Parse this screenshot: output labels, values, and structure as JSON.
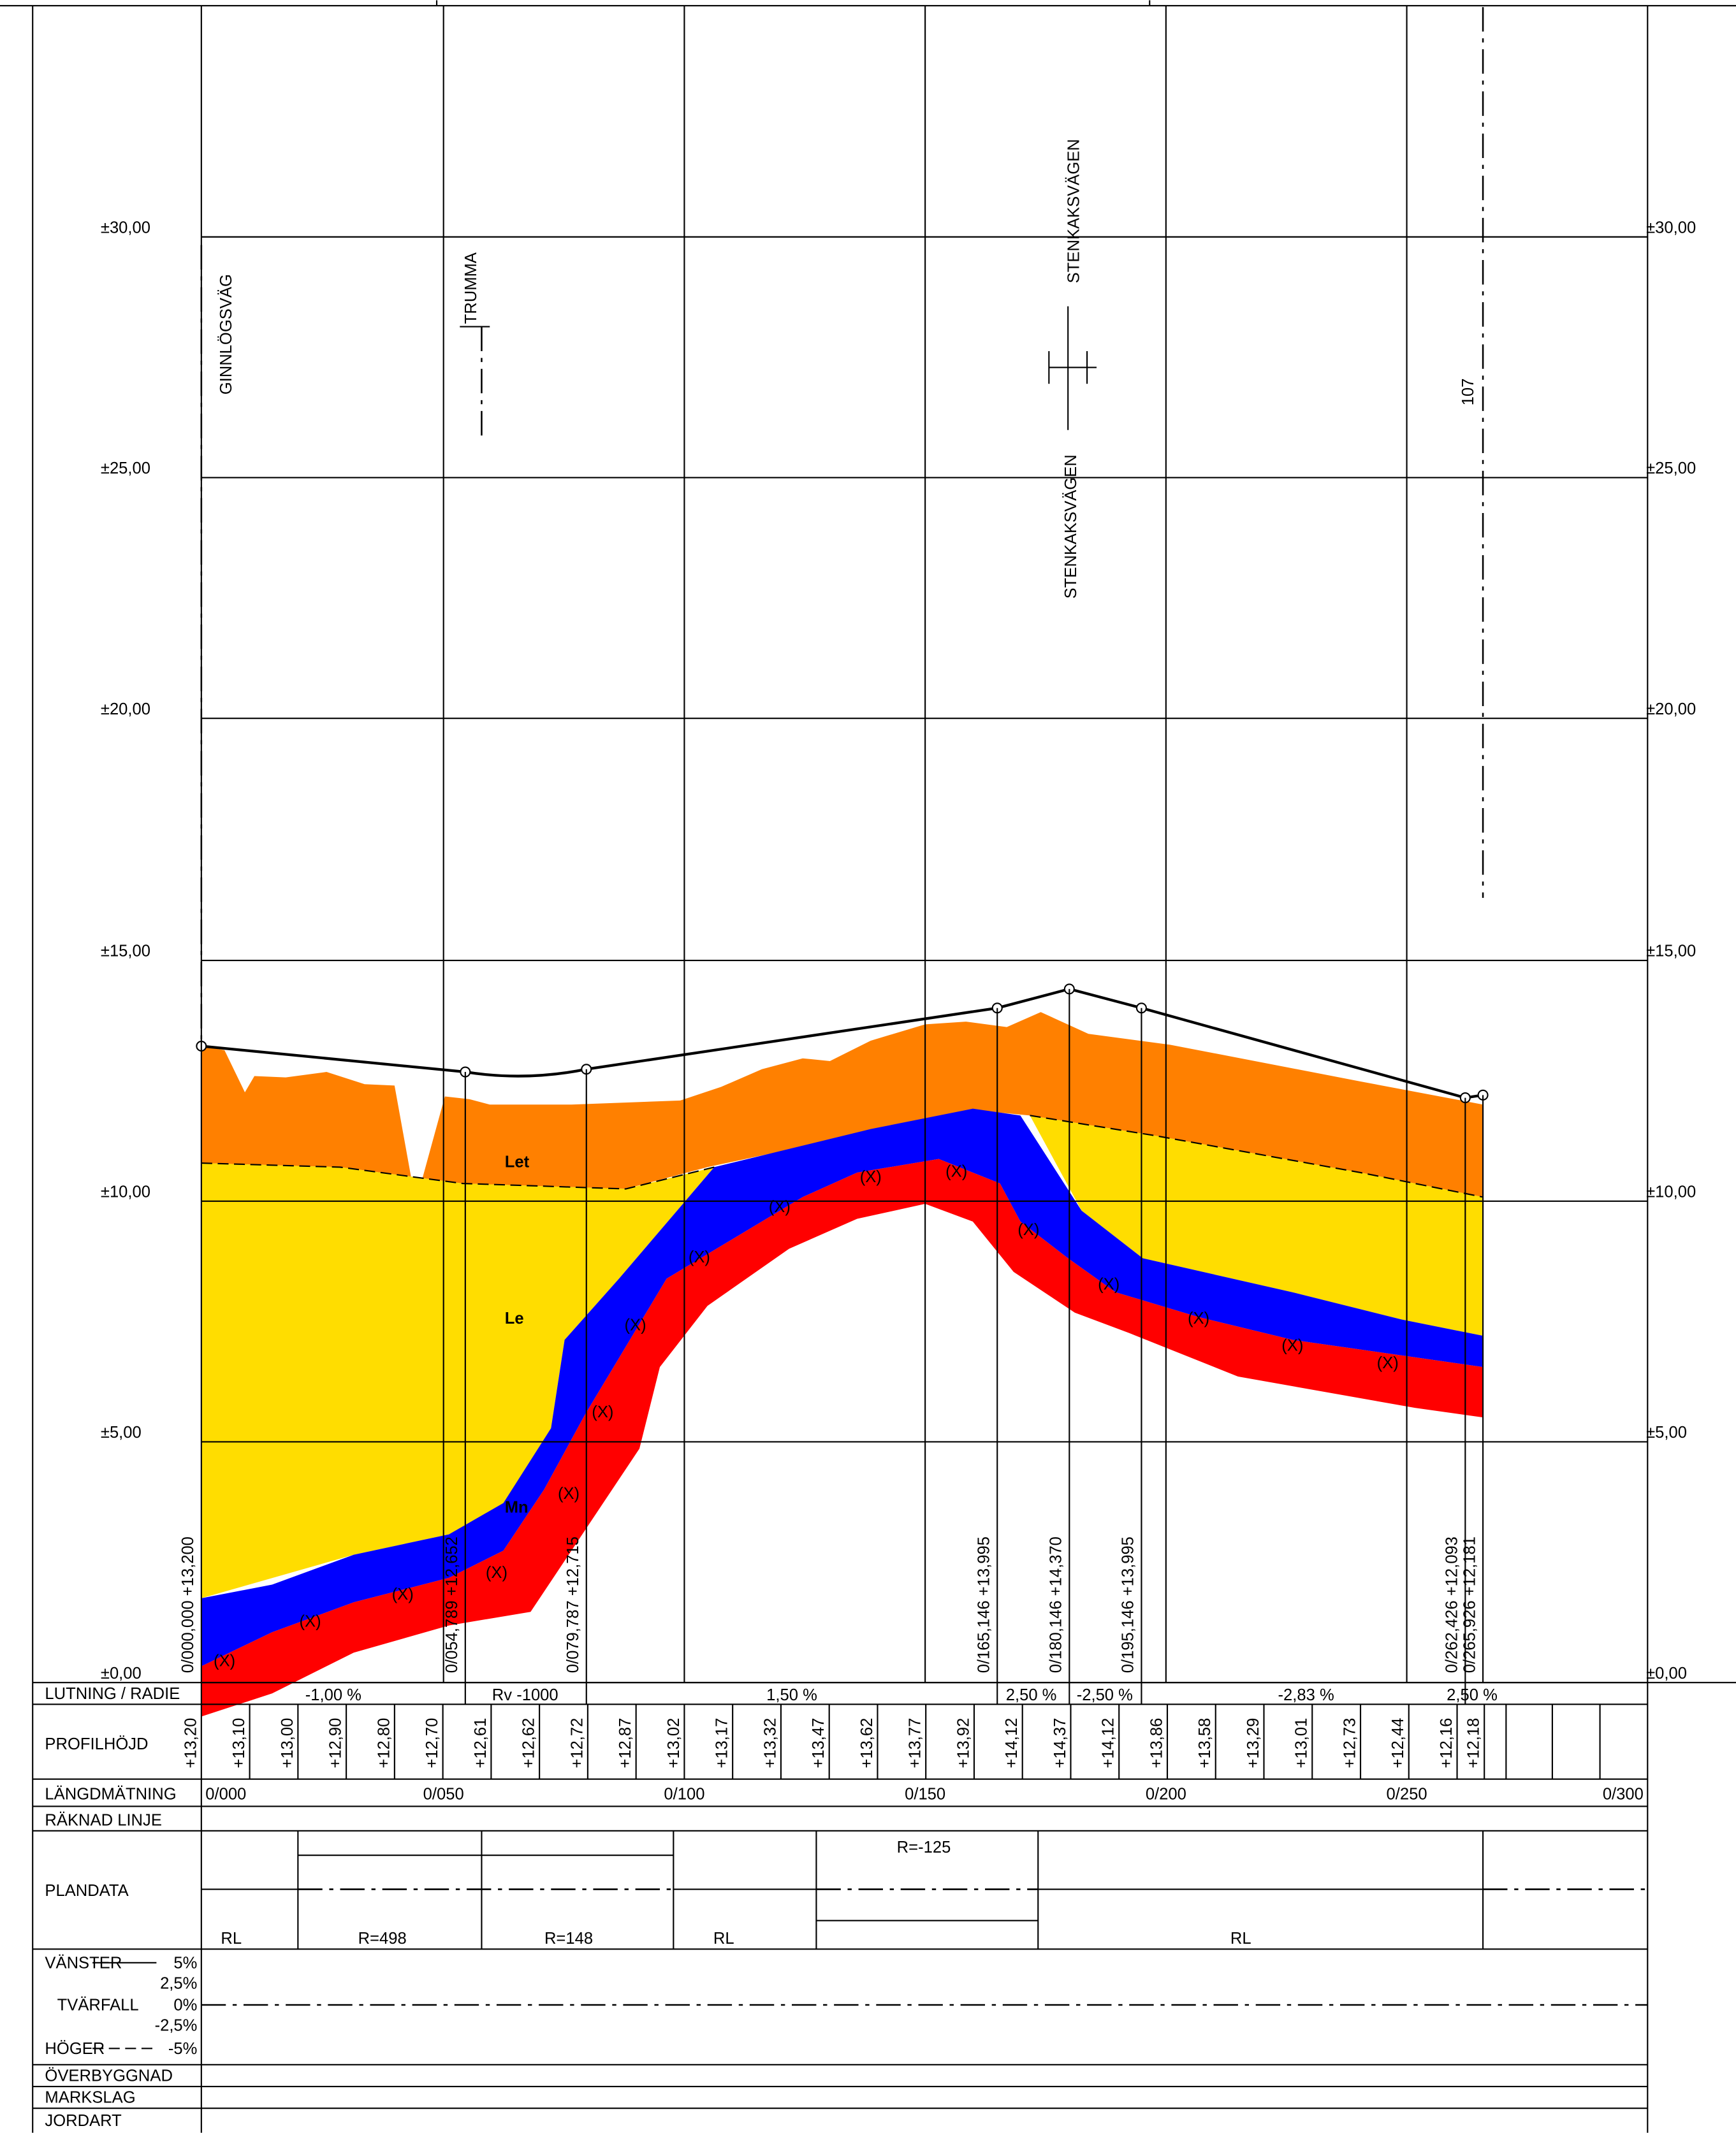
{
  "elevation_labels": [
    "±30,00",
    "±25,00",
    "±20,00",
    "±15,00",
    "±10,00",
    "±5,00",
    "±0,00"
  ],
  "annotations": {
    "ginnlogsvag": "GINNLÖGSVÄG",
    "trumma": "TRUMMA",
    "stenkak_upper": "STENKAKSVÄGEN",
    "stenkak_lower": "STENKAKSVÄGEN",
    "road_107": "107"
  },
  "layers": [
    "Let",
    "Le",
    "Mn"
  ],
  "layer_marks": [
    "(X)",
    "(X)",
    "(X)",
    "(X)",
    "(X)",
    "(X)",
    "(X)",
    "(X)",
    "(X)",
    "(X)",
    "(X)",
    "(X)",
    "(X)",
    "(X)",
    "(X)",
    "(X)"
  ],
  "stations": [
    "0/000,000  +13,200",
    "0/054,789  +12,652",
    "0/079,787  +12,715",
    "0/165,146  +13,995",
    "0/180,146  +14,370",
    "0/195,146  +13,995",
    "0/262,426  +12,093",
    "0/265,926  +12,181"
  ],
  "table": {
    "row_labels": [
      "LUTNING / RADIE",
      "PROFILHÖJD",
      "LÄNGDMÄTNING",
      "RÄKNAD LINJE",
      "PLANDATA",
      "ÖVERBYGGNAD",
      "MARKSLAG",
      "JORDART"
    ],
    "lutning": [
      "-1,00 %",
      "Rv -1000",
      "1,50 %",
      "2,50 %",
      "-2,50 %",
      "-2,83 %",
      "2,50 %"
    ],
    "profilhojd": [
      "+13,20",
      "+13,10",
      "+13,00",
      "+12,90",
      "+12,80",
      "+12,70",
      "+12,61",
      "+12,62",
      "+12,72",
      "+12,87",
      "+13,02",
      "+13,17",
      "+13,32",
      "+13,47",
      "+13,62",
      "+13,77",
      "+13,92",
      "+14,12",
      "+14,37",
      "+14,12",
      "+13,86",
      "+13,58",
      "+13,29",
      "+13,01",
      "+12,73",
      "+12,44",
      "+12,16",
      "+12,18"
    ],
    "langdmatning": [
      "0/000",
      "0/050",
      "0/100",
      "0/150",
      "0/200",
      "0/250",
      "0/300"
    ],
    "plandata": [
      "RL",
      "R=498",
      "R=148",
      "RL",
      "R=-125",
      "RL"
    ],
    "tvarfall_labels": [
      "VÄNSTER",
      "5%",
      "2,5%",
      "TVÄRFALL",
      "0%",
      "-2,5%",
      "HÖGER",
      "-5%"
    ]
  }
}
